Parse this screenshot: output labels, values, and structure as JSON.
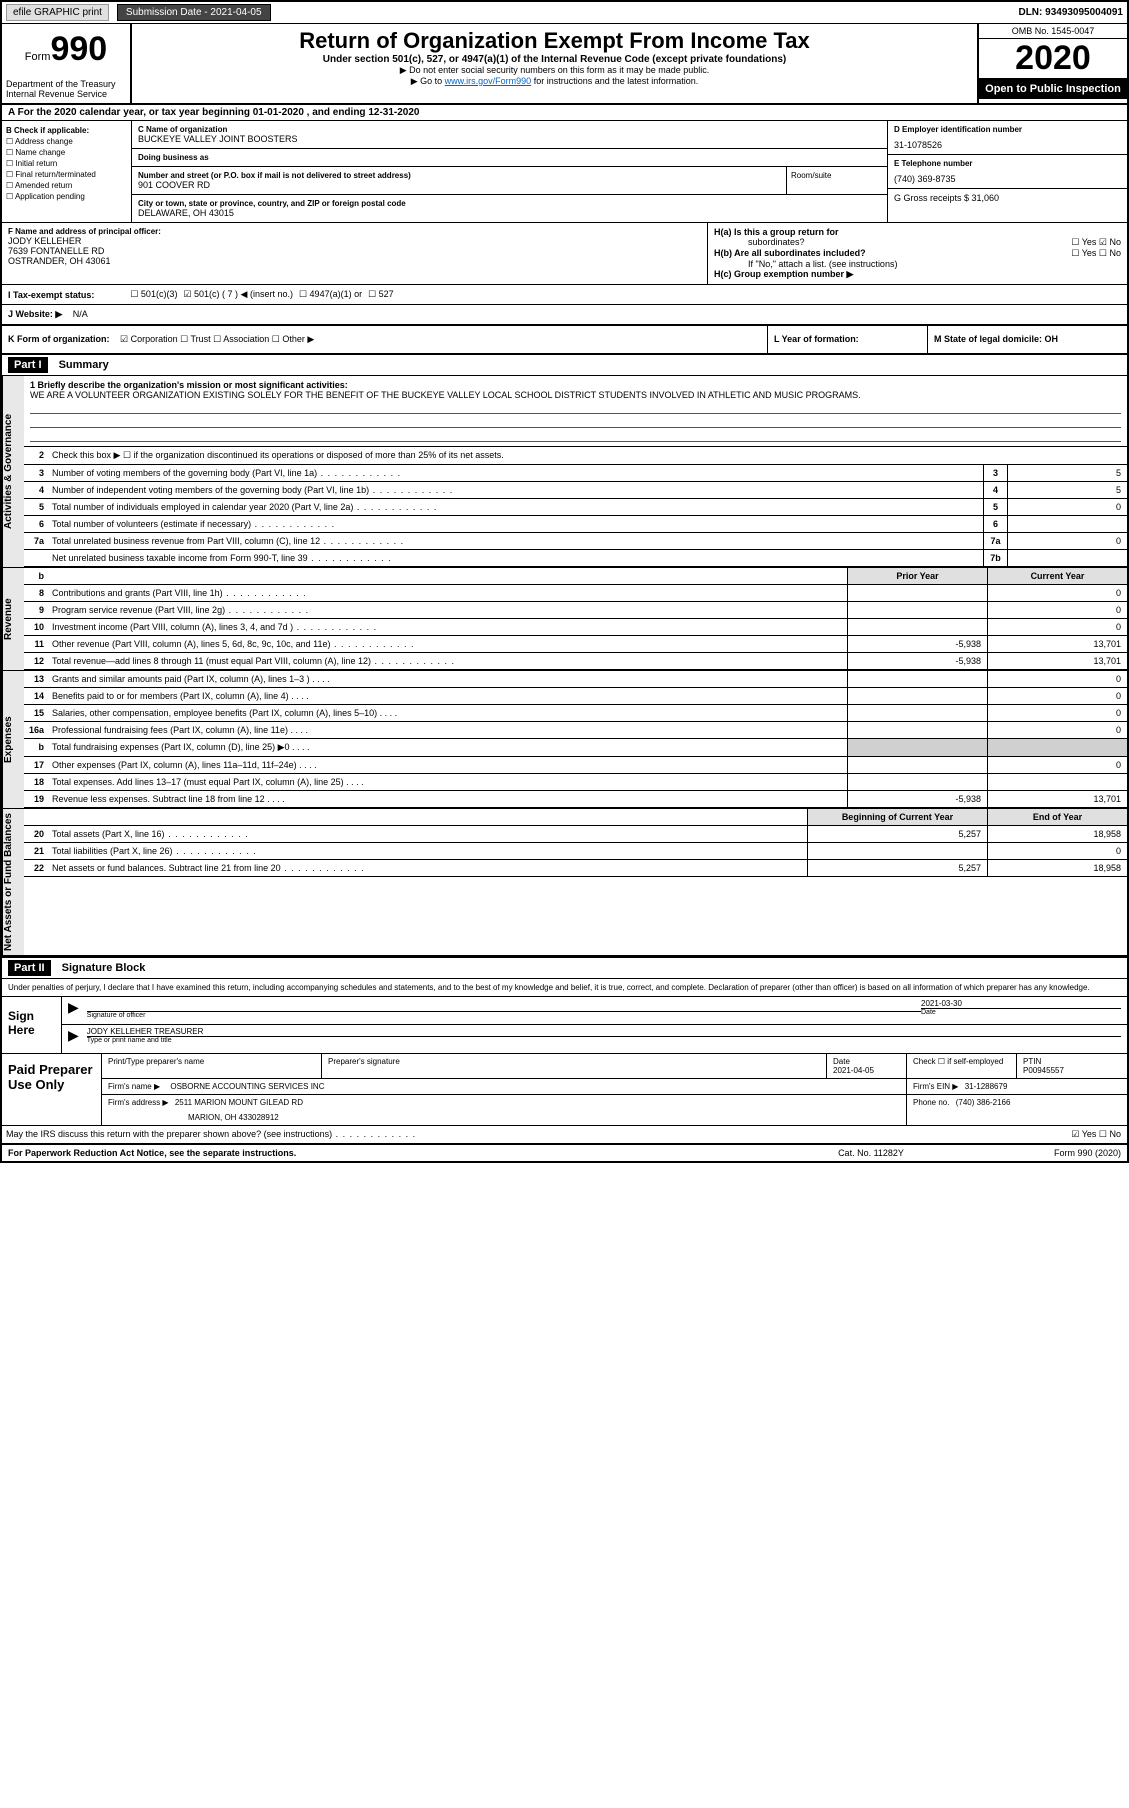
{
  "top": {
    "efile": "efile GRAPHIC print",
    "submission_lbl": "Submission Date - 2021-04-05",
    "dln": "DLN: 93493095004091"
  },
  "header": {
    "form_small": "Form",
    "form_big": "990",
    "title": "Return of Organization Exempt From Income Tax",
    "sub1": "Under section 501(c), 527, or 4947(a)(1) of the Internal Revenue Code (except private foundations)",
    "sub2": "▶ Do not enter social security numbers on this form as it may be made public.",
    "sub3_pre": "▶ Go to ",
    "sub3_link": "www.irs.gov/Form990",
    "sub3_post": " for instructions and the latest information.",
    "omb": "OMB No. 1545-0047",
    "year": "2020",
    "inspect": "Open to Public Inspection",
    "dept": "Department of the Treasury\nInternal Revenue Service"
  },
  "ty": "A For the 2020 calendar year, or tax year beginning 01-01-2020   , and ending 12-31-2020",
  "b": {
    "lbl": "B Check if applicable:",
    "opts": [
      "☐ Address change",
      "☐ Name change",
      "☐ Initial return",
      "☐ Final return/terminated",
      "☐ Amended return",
      "☐ Application pending"
    ]
  },
  "c": {
    "name_lbl": "C Name of organization",
    "name": "BUCKEYE VALLEY JOINT BOOSTERS",
    "dba_lbl": "Doing business as",
    "dba": "",
    "addr_lbl": "Number and street (or P.O. box if mail is not delivered to street address)",
    "addr": "901 COOVER RD",
    "room_lbl": "Room/suite",
    "city_lbl": "City or town, state or province, country, and ZIP or foreign postal code",
    "city": "DELAWARE, OH  43015"
  },
  "d": {
    "ein_lbl": "D Employer identification number",
    "ein": "31-1078526",
    "tel_lbl": "E Telephone number",
    "tel": "(740) 369-8735",
    "gross_lbl": "G Gross receipts $ 31,060"
  },
  "f": {
    "lbl": "F  Name and address of principal officer:",
    "name": "JODY KELLEHER",
    "addr1": "7639 FONTANELLE RD",
    "addr2": "OSTRANDER, OH  43061"
  },
  "h": {
    "a_lbl": "H(a)  Is this a group return for",
    "a_lbl2": "subordinates?",
    "a_yn": "☐ Yes  ☑ No",
    "b_lbl": "H(b)  Are all subordinates included?",
    "b_yn": "☐ Yes  ☐ No",
    "b_note": "If \"No,\" attach a list. (see instructions)",
    "c_lbl": "H(c)  Group exemption number ▶"
  },
  "i": {
    "lbl": "I   Tax-exempt status:",
    "opt1": "☐  501(c)(3)",
    "opt2": "☑  501(c) ( 7 ) ◀ (insert no.)",
    "opt3": "☐  4947(a)(1) or",
    "opt4": "☐  527"
  },
  "j": {
    "lbl": "J   Website: ▶",
    "val": "N/A"
  },
  "k": {
    "lbl": "K Form of organization:",
    "opts": "☑ Corporation  ☐ Trust  ☐ Association  ☐ Other ▶",
    "l_lbl": "L Year of formation:",
    "l_val": "",
    "m_lbl": "M State of legal domicile: OH"
  },
  "parts": {
    "p1": "Part I",
    "p1_title": "Summary",
    "p2": "Part II",
    "p2_title": "Signature Block"
  },
  "vtabs": {
    "gov": "Activities & Governance",
    "rev": "Revenue",
    "exp": "Expenses",
    "net": "Net Assets or Fund Balances"
  },
  "summary": {
    "l1_lbl": "1  Briefly describe the organization's mission or most significant activities:",
    "l1_text": "WE ARE A VOLUNTEER ORGANIZATION EXISTING SOLELY FOR THE BENEFIT OF THE BUCKEYE VALLEY LOCAL SCHOOL DISTRICT STUDENTS INVOLVED IN ATHLETIC AND MUSIC PROGRAMS.",
    "l2": "Check this box ▶ ☐  if the organization discontinued its operations or disposed of more than 25% of its net assets.",
    "rows": [
      {
        "n": "3",
        "t": "Number of voting members of the governing body (Part VI, line 1a)",
        "box": "3",
        "v": "5"
      },
      {
        "n": "4",
        "t": "Number of independent voting members of the governing body (Part VI, line 1b)",
        "box": "4",
        "v": "5"
      },
      {
        "n": "5",
        "t": "Total number of individuals employed in calendar year 2020 (Part V, line 2a)",
        "box": "5",
        "v": "0"
      },
      {
        "n": "6",
        "t": "Total number of volunteers (estimate if necessary)",
        "box": "6",
        "v": ""
      },
      {
        "n": "7a",
        "t": "Total unrelated business revenue from Part VIII, column (C), line 12",
        "box": "7a",
        "v": "0"
      },
      {
        "n": "",
        "t": "Net unrelated business taxable income from Form 990-T, line 39",
        "box": "7b",
        "v": ""
      }
    ],
    "col_prior": "Prior Year",
    "col_current": "Current Year",
    "rev_rows": [
      {
        "n": "8",
        "t": "Contributions and grants (Part VIII, line 1h)",
        "p": "",
        "c": "0"
      },
      {
        "n": "9",
        "t": "Program service revenue (Part VIII, line 2g)",
        "p": "",
        "c": "0"
      },
      {
        "n": "10",
        "t": "Investment income (Part VIII, column (A), lines 3, 4, and 7d )",
        "p": "",
        "c": "0"
      },
      {
        "n": "11",
        "t": "Other revenue (Part VIII, column (A), lines 5, 6d, 8c, 9c, 10c, and 11e)",
        "p": "-5,938",
        "c": "13,701"
      },
      {
        "n": "12",
        "t": "Total revenue—add lines 8 through 11 (must equal Part VIII, column (A), line 12)",
        "p": "-5,938",
        "c": "13,701"
      }
    ],
    "exp_rows": [
      {
        "n": "13",
        "t": "Grants and similar amounts paid (Part IX, column (A), lines 1–3 )",
        "p": "",
        "c": "0"
      },
      {
        "n": "14",
        "t": "Benefits paid to or for members (Part IX, column (A), line 4)",
        "p": "",
        "c": "0"
      },
      {
        "n": "15",
        "t": "Salaries, other compensation, employee benefits (Part IX, column (A), lines 5–10)",
        "p": "",
        "c": "0"
      },
      {
        "n": "16a",
        "t": "Professional fundraising fees (Part IX, column (A), line 11e)",
        "p": "",
        "c": "0"
      },
      {
        "n": "b",
        "t": "Total fundraising expenses (Part IX, column (D), line 25) ▶0",
        "p": "shaded",
        "c": "shaded"
      },
      {
        "n": "17",
        "t": "Other expenses (Part IX, column (A), lines 11a–11d, 11f–24e)",
        "p": "",
        "c": "0"
      },
      {
        "n": "18",
        "t": "Total expenses. Add lines 13–17 (must equal Part IX, column (A), line 25)",
        "p": "",
        "c": ""
      },
      {
        "n": "19",
        "t": "Revenue less expenses. Subtract line 18 from line 12",
        "p": "-5,938",
        "c": "13,701"
      }
    ],
    "col_begin": "Beginning of Current Year",
    "col_end": "End of Year",
    "net_rows": [
      {
        "n": "20",
        "t": "Total assets (Part X, line 16)",
        "p": "5,257",
        "c": "18,958"
      },
      {
        "n": "21",
        "t": "Total liabilities (Part X, line 26)",
        "p": "",
        "c": "0"
      },
      {
        "n": "22",
        "t": "Net assets or fund balances. Subtract line 21 from line 20",
        "p": "5,257",
        "c": "18,958"
      }
    ]
  },
  "sig": {
    "decl": "Under penalties of perjury, I declare that I have examined this return, including accompanying schedules and statements, and to the best of my knowledge and belief, it is true, correct, and complete. Declaration of preparer (other than officer) is based on all information of which preparer has any knowledge.",
    "sign_here": "Sign Here",
    "sig_officer_lbl": "Signature of officer",
    "date_lbl": "Date",
    "date_val": "2021-03-30",
    "name_title": "JODY KELLEHER  TREASURER",
    "name_title_lbl": "Type or print name and title",
    "paid_lbl": "Paid Preparer Use Only",
    "prep_name_lbl": "Print/Type preparer's name",
    "prep_sig_lbl": "Preparer's signature",
    "prep_date_lbl": "Date",
    "prep_date": "2021-04-05",
    "prep_chk_lbl": "Check ☐ if self-employed",
    "ptin_lbl": "PTIN",
    "ptin": "P00945557",
    "firm_name_lbl": "Firm's name   ▶",
    "firm_name": "OSBORNE ACCOUNTING SERVICES INC",
    "firm_ein_lbl": "Firm's EIN ▶",
    "firm_ein": "31-1288679",
    "firm_addr_lbl": "Firm's address ▶",
    "firm_addr1": "2511 MARION MOUNT GILEAD RD",
    "firm_addr2": "MARION, OH  433028912",
    "firm_phone_lbl": "Phone no.",
    "firm_phone": "(740) 386-2166",
    "discuss": "May the IRS discuss this return with the preparer shown above? (see instructions)",
    "discuss_yn": "☑ Yes  ☐ No"
  },
  "footer": {
    "f1": "For Paperwork Reduction Act Notice, see the separate instructions.",
    "f2": "Cat. No. 11282Y",
    "f3": "Form 990 (2020)"
  }
}
